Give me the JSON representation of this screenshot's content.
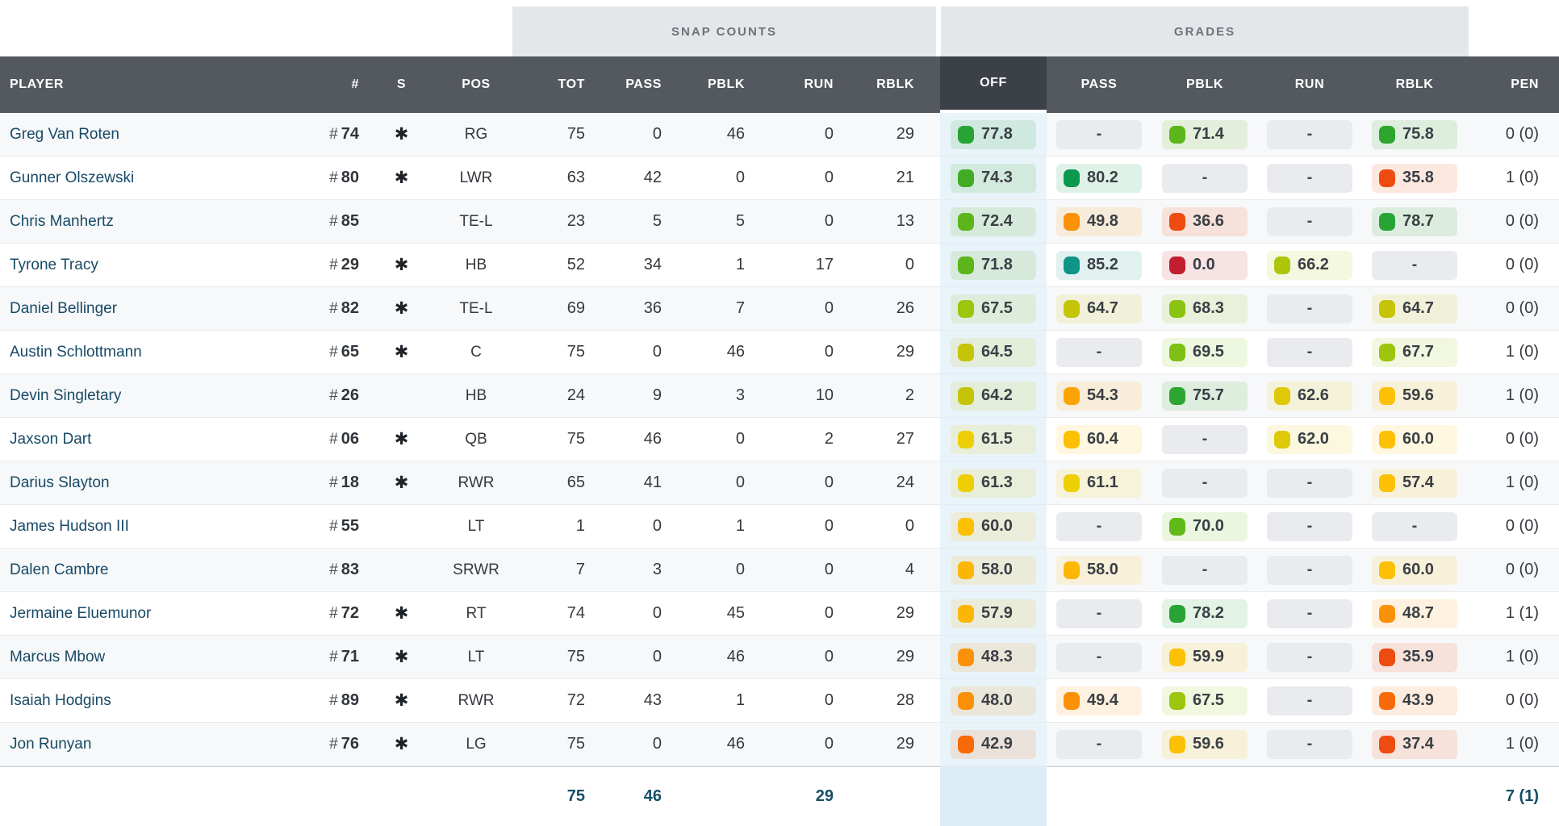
{
  "groups": {
    "snap_counts": "SNAP COUNTS",
    "grades": "GRADES"
  },
  "columns": {
    "player": "PLAYER",
    "num": "#",
    "s": "S",
    "pos": "POS",
    "tot": "TOT",
    "pass": "PASS",
    "pblk": "PBLK",
    "run": "RUN",
    "rblk": "RBLK",
    "off": "OFF",
    "g_pass": "PASS",
    "g_pblk": "PBLK",
    "g_run": "RUN",
    "g_rblk": "RBLK",
    "pen": "PEN"
  },
  "star_glyph": "✱",
  "colors": {
    "header_bg": "#54585f",
    "header_active_bg": "#3c4147",
    "band_bg": "#e4e7ea",
    "off_column_tint": "#e9f3fa",
    "off_footer_tint": "#ddedf8",
    "row_alt_bg": "#f7f8f9",
    "player_link": "#174a66",
    "footer_text": "#174e67",
    "dash_pill_bg": "#e9ebef"
  },
  "rows": [
    {
      "player": "Greg Van Roten",
      "num": "74",
      "star": true,
      "pos": "RG",
      "tot": "75",
      "pass": "0",
      "pblk": "46",
      "run": "0",
      "rblk": "29",
      "g_off": {
        "v": "77.8",
        "c": "#27a433"
      },
      "g_pass": {
        "v": "-"
      },
      "g_pblk": {
        "v": "71.4",
        "c": "#5cb51a"
      },
      "g_run": {
        "v": "-"
      },
      "g_rblk": {
        "v": "75.8",
        "c": "#2ea52f"
      },
      "pen": "0 (0)"
    },
    {
      "player": "Gunner Olszewski",
      "num": "80",
      "star": true,
      "pos": "LWR",
      "tot": "63",
      "pass": "42",
      "pblk": "0",
      "run": "0",
      "rblk": "21",
      "g_off": {
        "v": "74.3",
        "c": "#41ab24"
      },
      "g_pass": {
        "v": "80.2",
        "c": "#0b9a4d"
      },
      "g_pblk": {
        "v": "-"
      },
      "g_run": {
        "v": "-"
      },
      "g_rblk": {
        "v": "35.8",
        "c": "#ee4b10"
      },
      "pen": "1 (0)"
    },
    {
      "player": "Chris Manhertz",
      "num": "85",
      "star": false,
      "pos": "TE-L",
      "tot": "23",
      "pass": "5",
      "pblk": "5",
      "run": "0",
      "rblk": "13",
      "g_off": {
        "v": "72.4",
        "c": "#5cb51a"
      },
      "g_pass": {
        "v": "49.8",
        "c": "#fb9108"
      },
      "g_pblk": {
        "v": "36.6",
        "c": "#ee4b10"
      },
      "g_run": {
        "v": "-"
      },
      "g_rblk": {
        "v": "78.7",
        "c": "#27a433"
      },
      "pen": "0 (0)"
    },
    {
      "player": "Tyrone Tracy",
      "num": "29",
      "star": true,
      "pos": "HB",
      "tot": "52",
      "pass": "34",
      "pblk": "1",
      "run": "17",
      "rblk": "0",
      "g_off": {
        "v": "71.8",
        "c": "#5cb51a"
      },
      "g_pass": {
        "v": "85.2",
        "c": "#0f9587"
      },
      "g_pblk": {
        "v": "0.0",
        "c": "#c11f2e"
      },
      "g_run": {
        "v": "66.2",
        "c": "#adc60b"
      },
      "g_rblk": {
        "v": "-"
      },
      "pen": "0 (0)"
    },
    {
      "player": "Daniel Bellinger",
      "num": "82",
      "star": true,
      "pos": "TE-L",
      "tot": "69",
      "pass": "36",
      "pblk": "7",
      "run": "0",
      "rblk": "26",
      "g_off": {
        "v": "67.5",
        "c": "#9cc50d"
      },
      "g_pass": {
        "v": "64.7",
        "c": "#c6c408"
      },
      "g_pblk": {
        "v": "68.3",
        "c": "#8ac311"
      },
      "g_run": {
        "v": "-"
      },
      "g_rblk": {
        "v": "64.7",
        "c": "#c6c408"
      },
      "pen": "0 (0)"
    },
    {
      "player": "Austin Schlottmann",
      "num": "65",
      "star": true,
      "pos": "C",
      "tot": "75",
      "pass": "0",
      "pblk": "46",
      "run": "0",
      "rblk": "29",
      "g_off": {
        "v": "64.5",
        "c": "#c6c408"
      },
      "g_pass": {
        "v": "-"
      },
      "g_pblk": {
        "v": "69.5",
        "c": "#7dc013"
      },
      "g_run": {
        "v": "-"
      },
      "g_rblk": {
        "v": "67.7",
        "c": "#9cc50d"
      },
      "pen": "1 (0)"
    },
    {
      "player": "Devin Singletary",
      "num": "26",
      "star": false,
      "pos": "HB",
      "tot": "24",
      "pass": "9",
      "pblk": "3",
      "run": "10",
      "rblk": "2",
      "g_off": {
        "v": "64.2",
        "c": "#c6c408"
      },
      "g_pass": {
        "v": "54.3",
        "c": "#fba307"
      },
      "g_pblk": {
        "v": "75.7",
        "c": "#2ea52f"
      },
      "g_run": {
        "v": "62.6",
        "c": "#ddc905"
      },
      "g_rblk": {
        "v": "59.6",
        "c": "#fcc005"
      },
      "pen": "1 (0)"
    },
    {
      "player": "Jaxson Dart",
      "num": "06",
      "star": true,
      "pos": "QB",
      "tot": "75",
      "pass": "46",
      "pblk": "0",
      "run": "2",
      "rblk": "27",
      "g_off": {
        "v": "61.5",
        "c": "#eecf06"
      },
      "g_pass": {
        "v": "60.4",
        "c": "#fcc005"
      },
      "g_pblk": {
        "v": "-"
      },
      "g_run": {
        "v": "62.0",
        "c": "#ddc905"
      },
      "g_rblk": {
        "v": "60.0",
        "c": "#fcc005"
      },
      "pen": "0 (0)"
    },
    {
      "player": "Darius Slayton",
      "num": "18",
      "star": true,
      "pos": "RWR",
      "tot": "65",
      "pass": "41",
      "pblk": "0",
      "run": "0",
      "rblk": "24",
      "g_off": {
        "v": "61.3",
        "c": "#eecf06"
      },
      "g_pass": {
        "v": "61.1",
        "c": "#eecf06"
      },
      "g_pblk": {
        "v": "-"
      },
      "g_run": {
        "v": "-"
      },
      "g_rblk": {
        "v": "57.4",
        "c": "#fcc005"
      },
      "pen": "1 (0)"
    },
    {
      "player": "James Hudson III",
      "num": "55",
      "star": false,
      "pos": "LT",
      "tot": "1",
      "pass": "0",
      "pblk": "1",
      "run": "0",
      "rblk": "0",
      "g_off": {
        "v": "60.0",
        "c": "#fcc005"
      },
      "g_pass": {
        "v": "-"
      },
      "g_pblk": {
        "v": "70.0",
        "c": "#62ba18"
      },
      "g_run": {
        "v": "-"
      },
      "g_rblk": {
        "v": "-"
      },
      "pen": "0 (0)"
    },
    {
      "player": "Dalen Cambre",
      "num": "83",
      "star": false,
      "pos": "SRWR",
      "tot": "7",
      "pass": "3",
      "pblk": "0",
      "run": "0",
      "rblk": "4",
      "g_off": {
        "v": "58.0",
        "c": "#fcb606"
      },
      "g_pass": {
        "v": "58.0",
        "c": "#fcb606"
      },
      "g_pblk": {
        "v": "-"
      },
      "g_run": {
        "v": "-"
      },
      "g_rblk": {
        "v": "60.0",
        "c": "#fcc005"
      },
      "pen": "0 (0)"
    },
    {
      "player": "Jermaine Eluemunor",
      "num": "72",
      "star": true,
      "pos": "RT",
      "tot": "74",
      "pass": "0",
      "pblk": "45",
      "run": "0",
      "rblk": "29",
      "g_off": {
        "v": "57.9",
        "c": "#fcb606"
      },
      "g_pass": {
        "v": "-"
      },
      "g_pblk": {
        "v": "78.2",
        "c": "#27a433"
      },
      "g_run": {
        "v": "-"
      },
      "g_rblk": {
        "v": "48.7",
        "c": "#fb9108"
      },
      "pen": "1 (1)"
    },
    {
      "player": "Marcus Mbow",
      "num": "71",
      "star": true,
      "pos": "LT",
      "tot": "75",
      "pass": "0",
      "pblk": "46",
      "run": "0",
      "rblk": "29",
      "g_off": {
        "v": "48.3",
        "c": "#fb9108"
      },
      "g_pass": {
        "v": "-"
      },
      "g_pblk": {
        "v": "59.9",
        "c": "#fcc005"
      },
      "g_run": {
        "v": "-"
      },
      "g_rblk": {
        "v": "35.9",
        "c": "#ee4b10"
      },
      "pen": "1 (0)"
    },
    {
      "player": "Isaiah Hodgins",
      "num": "89",
      "star": true,
      "pos": "RWR",
      "tot": "72",
      "pass": "43",
      "pblk": "1",
      "run": "0",
      "rblk": "28",
      "g_off": {
        "v": "48.0",
        "c": "#fb9108"
      },
      "g_pass": {
        "v": "49.4",
        "c": "#fb9108"
      },
      "g_pblk": {
        "v": "67.5",
        "c": "#9cc50d"
      },
      "g_run": {
        "v": "-"
      },
      "g_rblk": {
        "v": "43.9",
        "c": "#f76a07"
      },
      "pen": "0 (0)"
    },
    {
      "player": "Jon Runyan",
      "num": "76",
      "star": true,
      "pos": "LG",
      "tot": "75",
      "pass": "0",
      "pblk": "46",
      "run": "0",
      "rblk": "29",
      "g_off": {
        "v": "42.9",
        "c": "#f76a07"
      },
      "g_pass": {
        "v": "-"
      },
      "g_pblk": {
        "v": "59.6",
        "c": "#fcc005"
      },
      "g_run": {
        "v": "-"
      },
      "g_rblk": {
        "v": "37.4",
        "c": "#ee4b10"
      },
      "pen": "1 (0)"
    }
  ],
  "footer": {
    "tot": "75",
    "pass": "46",
    "run": "29",
    "pen": "7 (1)"
  }
}
